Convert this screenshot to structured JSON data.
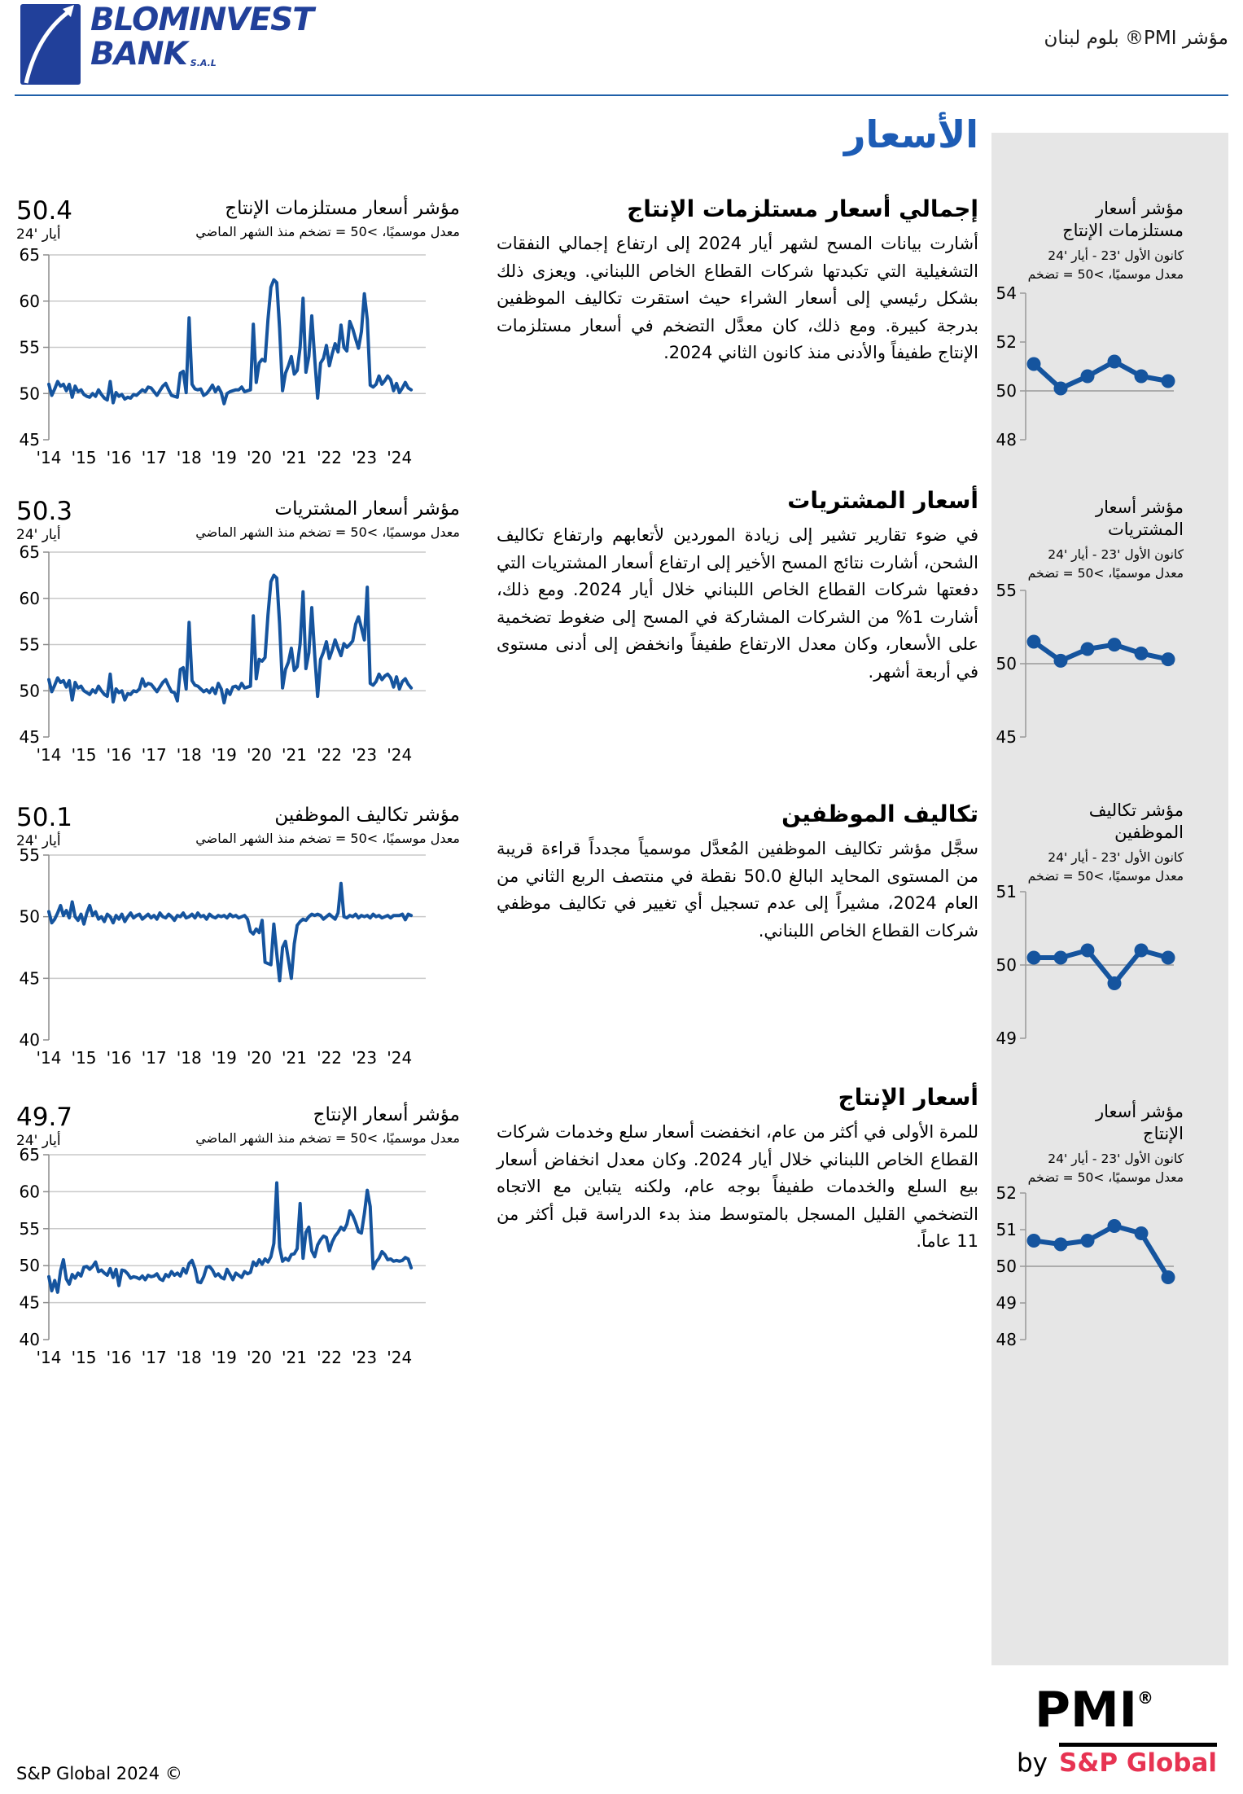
{
  "header": {
    "logo_line1": "BLOMINVEST",
    "logo_line2": "BANK",
    "logo_sal": "S.A.L",
    "doc_title": "مؤشر PMI® بلوم لبنان"
  },
  "page_title": "الأسعار",
  "colors": {
    "line_blue": "#15549e",
    "title_blue": "#1d5cb5",
    "sidebar_gray": "#e6e6e6",
    "grid_gray": "#c9c9c9",
    "axis_gray": "#8c8c8c",
    "sp_red": "#e73352",
    "logo_blue": "#21409a",
    "rule_blue": "#1e5fa8"
  },
  "sections": [
    {
      "heading": "إجمالي أسعار مستلزمات الإنتاج",
      "body": "أشارت بيانات المسح لشهر أيار 2024 إلى ارتفاع إجمالي النفقات التشغيلية التي تكبدتها شركات القطاع الخاص اللبناني. ويعزى ذلك بشكل رئيسي إلى أسعار الشراء حيث استقرت تكاليف الموظفين بدرجة كبيرة. ومع ذلك، كان معدَّل التضخم في أسعار مستلزمات الإنتاج طفيفاً والأدنى منذ كانون الثاني 2024.",
      "chart_title": "مؤشر أسعار مستلزمات الإنتاج",
      "chart_sub": "معدل موسميًا، >50 = تضخم منذ الشهر الماضي",
      "value": "50.4",
      "date": "أيار '24",
      "side_title1": "مؤشر أسعار",
      "side_title2": "مستلزمات الإنتاج",
      "side_period": "كانون الأول '23 - أيار '24",
      "side_note": "معدل موسميًا، >50 = تضخم"
    },
    {
      "heading": "أسعار المشتريات",
      "body": "في ضوء تقارير تشير إلى زيادة الموردين لأتعابهم وارتفاع تكاليف الشحن، أشارت نتائج المسح الأخير إلى ارتفاع أسعار المشتريات التي دفعتها شركات القطاع الخاص اللبناني خلال أيار 2024. ومع ذلك، أشارت 1% من الشركات المشاركة في المسح إلى ضغوط تضخمية على الأسعار، وكان معدل الارتفاع طفيفاً وانخفض إلى أدنى مستوى في أربعة أشهر.",
      "chart_title": "مؤشر أسعار المشتريات",
      "chart_sub": "معدل موسميًا، >50 = تضخم منذ الشهر الماضي",
      "value": "50.3",
      "date": "أيار '24",
      "side_title1": "مؤشر أسعار",
      "side_title2": "المشتريات",
      "side_period": "كانون الأول '23 - أيار '24",
      "side_note": "معدل موسميًا، >50 = تضخم"
    },
    {
      "heading": "تكاليف الموظفين",
      "body": "سجَّل مؤشر تكاليف الموظفين المُعدَّل موسمياً مجدداً قراءة قريبة من المستوى المحايد البالغ 50.0 نقطة في منتصف الربع الثاني من العام 2024، مشيراً إلى عدم تسجيل أي تغيير في تكاليف موظفي شركات القطاع الخاص اللبناني.",
      "chart_title": "مؤشر تكاليف الموظفين",
      "chart_sub": "معدل موسميًا، >50 = تضخم منذ الشهر الماضي",
      "value": "50.1",
      "date": "أيار '24",
      "side_title1": "مؤشر تكاليف",
      "side_title2": "الموظفين",
      "side_period": "كانون الأول '23 - أيار '24",
      "side_note": "معدل موسميًا، >50 = تضخم"
    },
    {
      "heading": "أسعار الإنتاج",
      "body": "للمرة الأولى في أكثر من عام، انخفضت أسعار سلع وخدمات شركات القطاع الخاص اللبناني خلال أيار 2024. وكان معدل انخفاض أسعار بيع السلع والخدمات طفيفاً بوجه عام، ولكنه يتباين مع الاتجاه التضخمي القليل المسجل بالمتوسط منذ بدء الدراسة قبل أكثر من 11 عاماً.",
      "chart_title": "مؤشر أسعار الإنتاج",
      "chart_sub": "معدل موسميًا، >50 = تضخم منذ الشهر الماضي",
      "value": "49.7",
      "date": "أيار '24",
      "side_title1": "مؤشر أسعار",
      "side_title2": "الإنتاج",
      "side_period": "كانون الأول '23 - أيار '24",
      "side_note": "معدل موسميًا، >50 = تضخم"
    }
  ],
  "chart_data": [
    {
      "type": "line",
      "title": "مؤشر أسعار مستلزمات الإنتاج",
      "latest": 50.4,
      "latest_label": "أيار '24",
      "ylim": [
        45,
        65
      ],
      "yticks": [
        45,
        50,
        55,
        60,
        65
      ],
      "x_start_year": 2014,
      "xtick_labels": [
        "'14",
        "'15",
        "'16",
        "'17",
        "'18",
        "'19",
        "'20",
        "'21",
        "'22",
        "'23",
        "'24"
      ],
      "values": [
        51.0,
        49.8,
        50.5,
        51.3,
        50.8,
        51.0,
        50.3,
        51.0,
        49.6,
        50.8,
        50.2,
        50.4,
        49.9,
        49.7,
        49.6,
        50.0,
        49.7,
        50.4,
        49.9,
        49.5,
        49.3,
        51.3,
        49.0,
        50.1,
        49.7,
        49.9,
        49.4,
        49.6,
        49.5,
        49.9,
        49.8,
        50.1,
        50.4,
        50.2,
        50.7,
        50.6,
        50.2,
        49.8,
        50.3,
        50.8,
        51.1,
        50.4,
        49.8,
        49.7,
        49.6,
        52.2,
        52.4,
        50.1,
        58.2,
        51.0,
        50.5,
        50.4,
        50.5,
        49.8,
        50.0,
        50.4,
        50.9,
        50.2,
        50.7,
        50.1,
        48.9,
        50.0,
        50.2,
        50.3,
        50.4,
        50.4,
        50.7,
        50.2,
        50.3,
        50.4,
        57.5,
        51.2,
        53.3,
        53.7,
        53.5,
        58.0,
        61.5,
        62.3,
        62.0,
        57.0,
        50.3,
        52.2,
        53.0,
        54.0,
        52.1,
        52.5,
        55.0,
        60.3,
        52.3,
        54.0,
        58.4,
        53.8,
        49.5,
        53.3,
        53.8,
        55.2,
        53.0,
        54.3,
        55.4,
        54.5,
        57.4,
        55.0,
        54.6,
        57.8,
        57.0,
        55.9,
        54.9,
        56.7,
        60.8,
        58.0,
        50.9,
        50.7,
        51.0,
        51.9,
        51.0,
        51.4,
        51.9,
        51.5,
        50.3,
        51.1,
        50.1,
        50.6,
        51.2,
        50.6,
        50.4
      ],
      "mini": {
        "period": "كانون الأول '23 - أيار '24",
        "ylim": [
          48,
          54
        ],
        "yticks": [
          48,
          50,
          52,
          54
        ],
        "baseline": 50,
        "values": [
          51.1,
          50.1,
          50.6,
          51.2,
          50.6,
          50.4
        ]
      }
    },
    {
      "type": "line",
      "title": "مؤشر أسعار المشتريات",
      "latest": 50.3,
      "latest_label": "أيار '24",
      "ylim": [
        45,
        65
      ],
      "yticks": [
        45,
        50,
        55,
        60,
        65
      ],
      "x_start_year": 2014,
      "xtick_labels": [
        "'14",
        "'15",
        "'16",
        "'17",
        "'18",
        "'19",
        "'20",
        "'21",
        "'22",
        "'23",
        "'24"
      ],
      "values": [
        51.2,
        49.9,
        50.6,
        51.4,
        50.9,
        51.1,
        50.4,
        51.1,
        49.0,
        50.9,
        50.3,
        50.5,
        50.0,
        49.8,
        49.6,
        50.1,
        49.8,
        50.5,
        50.0,
        49.6,
        49.4,
        51.8,
        48.8,
        50.2,
        49.8,
        50.0,
        49.0,
        49.7,
        49.6,
        50.0,
        49.9,
        50.2,
        51.3,
        50.5,
        50.8,
        50.7,
        50.3,
        49.9,
        50.4,
        50.9,
        51.2,
        50.5,
        49.9,
        49.8,
        48.9,
        52.3,
        52.5,
        50.2,
        57.4,
        51.1,
        50.6,
        50.5,
        50.2,
        49.9,
        50.1,
        49.8,
        50.3,
        49.7,
        50.8,
        50.2,
        48.7,
        50.1,
        49.6,
        50.4,
        50.5,
        50.2,
        50.8,
        50.3,
        50.4,
        50.5,
        58.1,
        51.3,
        53.4,
        53.2,
        53.6,
        58.2,
        61.8,
        62.5,
        62.2,
        57.2,
        50.3,
        52.3,
        53.1,
        54.6,
        52.2,
        52.6,
        55.1,
        60.7,
        52.4,
        54.1,
        59.0,
        53.9,
        49.4,
        53.4,
        54.2,
        55.3,
        53.5,
        54.4,
        55.5,
        54.6,
        53.8,
        55.1,
        54.7,
        55.0,
        55.4,
        57.2,
        58.0,
        56.8,
        55.5,
        61.2,
        50.8,
        50.6,
        51.0,
        51.8,
        51.2,
        51.6,
        51.8,
        51.4,
        50.4,
        51.5,
        50.2,
        51.0,
        51.3,
        50.7,
        50.3
      ],
      "mini": {
        "period": "كانون الأول '23 - أيار '24",
        "ylim": [
          45,
          55
        ],
        "yticks": [
          45,
          50,
          55
        ],
        "baseline": 50,
        "values": [
          51.5,
          50.2,
          51.0,
          51.3,
          50.7,
          50.3
        ]
      }
    },
    {
      "type": "line",
      "title": "مؤشر تكاليف الموظفين",
      "latest": 50.1,
      "latest_label": "أيار '24",
      "ylim": [
        40,
        55
      ],
      "yticks": [
        40,
        45,
        50,
        55
      ],
      "x_start_year": 2014,
      "xtick_labels": [
        "'14",
        "'15",
        "'16",
        "'17",
        "'18",
        "'19",
        "'20",
        "'21",
        "'22",
        "'23",
        "'24"
      ],
      "values": [
        50.4,
        49.5,
        49.8,
        50.3,
        50.9,
        50.1,
        50.5,
        49.9,
        51.2,
        50.0,
        49.7,
        50.2,
        49.4,
        50.3,
        50.9,
        50.1,
        50.4,
        49.8,
        50.0,
        49.6,
        50.2,
        50.0,
        49.5,
        50.1,
        49.8,
        50.2,
        49.6,
        50.0,
        50.3,
        49.9,
        50.1,
        50.2,
        49.8,
        50.0,
        50.2,
        49.9,
        50.1,
        49.8,
        50.3,
        50.0,
        49.9,
        50.2,
        50.0,
        49.7,
        50.1,
        50.0,
        50.3,
        49.9,
        50.0,
        50.2,
        49.9,
        50.3,
        50.0,
        50.1,
        49.8,
        50.2,
        50.0,
        49.9,
        50.1,
        50.0,
        50.1,
        49.9,
        50.2,
        50.0,
        50.1,
        49.9,
        50.0,
        50.1,
        49.8,
        48.8,
        48.6,
        49.0,
        48.7,
        49.7,
        46.3,
        46.2,
        46.1,
        49.4,
        47.0,
        44.8,
        47.5,
        48.0,
        46.5,
        45.0,
        47.8,
        49.3,
        49.6,
        49.8,
        49.7,
        50.0,
        50.2,
        50.1,
        50.2,
        50.1,
        49.8,
        50.0,
        50.2,
        50.0,
        49.8,
        50.3,
        52.7,
        50.0,
        49.9,
        50.1,
        50.0,
        50.2,
        49.9,
        50.1,
        50.0,
        50.1,
        49.9,
        50.2,
        50.0,
        50.1,
        49.9,
        50.0,
        50.1,
        49.9,
        50.1,
        50.1,
        50.1,
        50.2,
        49.75,
        50.2,
        50.1
      ],
      "mini": {
        "period": "كانون الأول '23 - أيار '24",
        "ylim": [
          49,
          51
        ],
        "yticks": [
          49,
          50,
          51
        ],
        "baseline": 50,
        "values": [
          50.1,
          50.1,
          50.2,
          49.75,
          50.2,
          50.1
        ]
      }
    },
    {
      "type": "line",
      "title": "مؤشر أسعار الإنتاج",
      "latest": 49.7,
      "latest_label": "أيار '24",
      "ylim": [
        40,
        65
      ],
      "yticks": [
        40,
        45,
        50,
        55,
        60,
        65
      ],
      "x_start_year": 2014,
      "xtick_labels": [
        "'14",
        "'15",
        "'16",
        "'17",
        "'18",
        "'19",
        "'20",
        "'21",
        "'22",
        "'23",
        "'24"
      ],
      "values": [
        48.5,
        46.6,
        48.0,
        46.4,
        49.3,
        50.8,
        48.2,
        47.5,
        48.8,
        48.3,
        49.0,
        48.6,
        49.8,
        49.9,
        49.5,
        49.9,
        50.5,
        49.2,
        49.4,
        49.0,
        48.7,
        49.6,
        48.4,
        49.5,
        47.3,
        49.4,
        49.3,
        48.9,
        48.3,
        48.5,
        48.4,
        48.2,
        48.6,
        48.1,
        48.7,
        48.5,
        48.6,
        48.9,
        48.2,
        48.0,
        48.8,
        48.5,
        49.2,
        48.7,
        49.0,
        48.6,
        49.6,
        49.0,
        50.3,
        50.7,
        49.6,
        47.8,
        47.7,
        48.5,
        49.8,
        49.9,
        49.4,
        48.6,
        48.9,
        48.4,
        48.2,
        49.5,
        48.8,
        48.1,
        49.0,
        48.7,
        48.4,
        49.2,
        48.9,
        49.1,
        50.5,
        50.0,
        50.8,
        50.2,
        50.9,
        50.5,
        51.2,
        53.0,
        61.2,
        52.5,
        50.6,
        51.0,
        50.7,
        51.5,
        51.6,
        52.3,
        58.4,
        51.0,
        54.5,
        55.2,
        52.0,
        51.2,
        52.8,
        53.5,
        54.0,
        53.8,
        52.0,
        53.2,
        54.0,
        54.5,
        55.2,
        54.8,
        55.6,
        57.4,
        56.8,
        55.8,
        54.6,
        54.4,
        57.0,
        60.2,
        58.0,
        49.6,
        50.5,
        51.0,
        51.9,
        51.5,
        50.8,
        50.9,
        50.6,
        50.7,
        50.6,
        50.7,
        51.1,
        50.9,
        49.7
      ],
      "mini": {
        "period": "كانون الأول '23 - أيار '24",
        "ylim": [
          48,
          52
        ],
        "yticks": [
          48,
          49,
          50,
          51,
          52
        ],
        "baseline": 50,
        "values": [
          50.7,
          50.6,
          50.7,
          51.1,
          50.9,
          49.7
        ]
      }
    }
  ],
  "footer": {
    "copyright": "S&P Global 2024 ©",
    "pmi_word": "PMI",
    "pmi_reg": "®",
    "by_word": "by",
    "sp_global": "S&P Global"
  }
}
